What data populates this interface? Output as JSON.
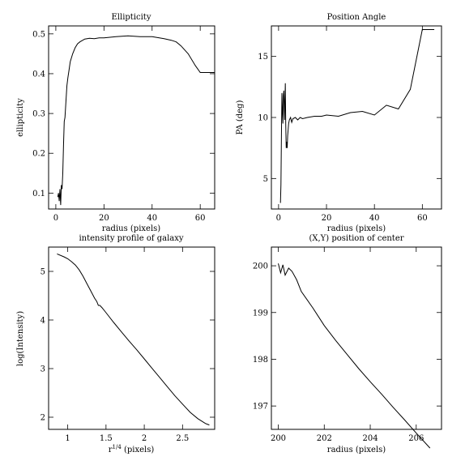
{
  "chart_data": [
    {
      "type": "line",
      "title": "Ellipticity",
      "xlabel": "radius (pixels)",
      "ylabel": "ellipticity",
      "xlim": [
        -3,
        66
      ],
      "ylim": [
        0.06,
        0.52
      ],
      "xticks": [
        0,
        20,
        40,
        60
      ],
      "xtick_labels": [
        "0",
        "20",
        "40",
        "60"
      ],
      "yticks": [
        0.1,
        0.2,
        0.3,
        0.4,
        0.5
      ],
      "ytick_labels": [
        "0.1",
        "0.2",
        "0.3",
        "0.4",
        "0.5"
      ],
      "series": [
        {
          "x": [
            0.8,
            1.1,
            1.4,
            1.7,
            2.0,
            2.3,
            2.6,
            2.9,
            3.2,
            3.5,
            3.8,
            4.2,
            4.6,
            5.0,
            5.5,
            6,
            7,
            8,
            9,
            10,
            12,
            14,
            16,
            18,
            20,
            25,
            30,
            35,
            40,
            45,
            48,
            50,
            52,
            55,
            58,
            60,
            63,
            66
          ],
          "y": [
            0.09,
            0.1,
            0.08,
            0.11,
            0.07,
            0.12,
            0.11,
            0.15,
            0.22,
            0.28,
            0.29,
            0.33,
            0.37,
            0.39,
            0.41,
            0.43,
            0.45,
            0.465,
            0.475,
            0.48,
            0.487,
            0.489,
            0.488,
            0.49,
            0.49,
            0.493,
            0.495,
            0.493,
            0.493,
            0.488,
            0.484,
            0.48,
            0.47,
            0.45,
            0.42,
            0.403,
            0.403,
            0.403
          ]
        }
      ]
    },
    {
      "type": "line",
      "title": "Position Angle",
      "xlabel": "radius (pixels)",
      "ylabel": "PA (deg)",
      "xlim": [
        -3,
        68
      ],
      "ylim": [
        2.5,
        17.5
      ],
      "xticks": [
        0,
        20,
        40,
        60
      ],
      "xtick_labels": [
        "0",
        "20",
        "40",
        "60"
      ],
      "yticks": [
        5,
        10,
        15
      ],
      "ytick_labels": [
        "5",
        "10",
        "15"
      ],
      "series": [
        {
          "x": [
            0.8,
            1.0,
            1.2,
            1.4,
            1.6,
            1.8,
            2.0,
            2.2,
            2.5,
            2.8,
            3.0,
            3.2,
            3.4,
            3.6,
            3.8,
            4.0,
            4.2,
            4.5,
            5.0,
            5.5,
            6,
            7,
            8,
            9,
            10,
            12,
            15,
            18,
            20,
            25,
            30,
            35,
            40,
            45,
            50,
            55,
            60,
            65
          ],
          "y": [
            3.0,
            4.5,
            8.5,
            12.0,
            10.5,
            9.5,
            11.8,
            12.2,
            9.8,
            12.8,
            9.5,
            7.5,
            8.0,
            7.5,
            8.5,
            9.0,
            9.5,
            9.8,
            10.0,
            9.6,
            9.9,
            10.0,
            9.8,
            10.0,
            9.9,
            10.0,
            10.1,
            10.1,
            10.2,
            10.1,
            10.4,
            10.5,
            10.2,
            11.0,
            10.7,
            12.3,
            17.2,
            17.2
          ]
        }
      ]
    },
    {
      "type": "line",
      "title": "intensity profile of galaxy",
      "xlabel": "r^1/4 (pixels)",
      "xlabel_base": "r",
      "xlabel_sup": "1/4",
      "xlabel_tail": " (pixels)",
      "ylabel": "log(Intensity)",
      "xlim": [
        0.75,
        2.92
      ],
      "ylim": [
        1.75,
        5.5
      ],
      "xticks": [
        1,
        1.5,
        2,
        2.5
      ],
      "xtick_labels": [
        "1",
        "1.5",
        "2",
        "2.5"
      ],
      "yticks": [
        2,
        3,
        4,
        5
      ],
      "ytick_labels": [
        "2",
        "3",
        "4",
        "5"
      ],
      "series": [
        {
          "x": [
            0.86,
            0.95,
            1.0,
            1.05,
            1.1,
            1.15,
            1.2,
            1.25,
            1.3,
            1.35,
            1.38,
            1.4,
            1.42,
            1.45,
            1.5,
            1.6,
            1.7,
            1.8,
            1.9,
            2.0,
            2.1,
            2.2,
            2.3,
            2.4,
            2.5,
            2.6,
            2.7,
            2.8,
            2.85
          ],
          "y": [
            5.36,
            5.3,
            5.26,
            5.2,
            5.13,
            5.03,
            4.9,
            4.75,
            4.6,
            4.45,
            4.38,
            4.3,
            4.3,
            4.25,
            4.15,
            3.95,
            3.76,
            3.57,
            3.39,
            3.2,
            3.01,
            2.82,
            2.63,
            2.44,
            2.27,
            2.1,
            1.97,
            1.87,
            1.84
          ]
        }
      ]
    },
    {
      "type": "line",
      "title": "(X,Y) position of center",
      "xlabel": "radius (pixels)",
      "ylabel": "",
      "xlim": [
        199.7,
        207.1
      ],
      "ylim": [
        196.5,
        200.4
      ],
      "xticks": [
        200,
        202,
        204,
        206
      ],
      "xtick_labels": [
        "200",
        "202",
        "204",
        "206"
      ],
      "yticks": [
        197,
        198,
        199,
        200
      ],
      "ytick_labels": [
        "197",
        "198",
        "199",
        "200"
      ],
      "series": [
        {
          "x": [
            200.0,
            200.1,
            200.2,
            200.3,
            200.45,
            200.6,
            200.8,
            201.0,
            201.5,
            202.0,
            202.5,
            203.0,
            203.5,
            204.0,
            204.5,
            205.0,
            205.5,
            206.0,
            206.6
          ],
          "y": [
            200.05,
            199.85,
            200.02,
            199.8,
            199.95,
            199.88,
            199.7,
            199.45,
            199.1,
            198.72,
            198.4,
            198.1,
            197.8,
            197.52,
            197.25,
            196.97,
            196.7,
            196.42,
            196.1
          ]
        }
      ]
    }
  ]
}
